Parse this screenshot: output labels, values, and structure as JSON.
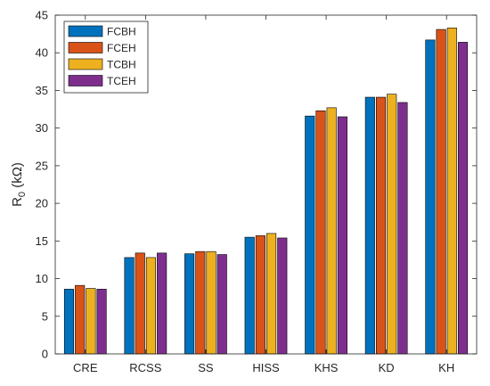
{
  "chart_data": {
    "type": "bar",
    "title": "",
    "xlabel": "",
    "ylabel_main": "R",
    "ylabel_sub": "0",
    "ylabel_unit": " (kΩ)",
    "ylim": [
      0,
      45
    ],
    "yticks": [
      0,
      5,
      10,
      15,
      20,
      25,
      30,
      35,
      40,
      45
    ],
    "categories": [
      "CRE",
      "RCSS",
      "SS",
      "HISS",
      "KHS",
      "KD",
      "KH"
    ],
    "series": [
      {
        "name": "FCBH",
        "color": "#0072BD",
        "values": [
          8.6,
          12.8,
          13.3,
          15.5,
          31.6,
          34.1,
          41.7
        ]
      },
      {
        "name": "FCEH",
        "color": "#D95319",
        "values": [
          9.1,
          13.4,
          13.6,
          15.7,
          32.3,
          34.1,
          43.1
        ]
      },
      {
        "name": "TCBH",
        "color": "#EDB120",
        "values": [
          8.7,
          12.8,
          13.6,
          16.0,
          32.7,
          34.5,
          43.3
        ]
      },
      {
        "name": "TCEH",
        "color": "#7E2F8E",
        "values": [
          8.6,
          13.4,
          13.2,
          15.4,
          31.5,
          33.4,
          41.4
        ]
      }
    ],
    "grid": false,
    "legend_position": "top-left"
  }
}
